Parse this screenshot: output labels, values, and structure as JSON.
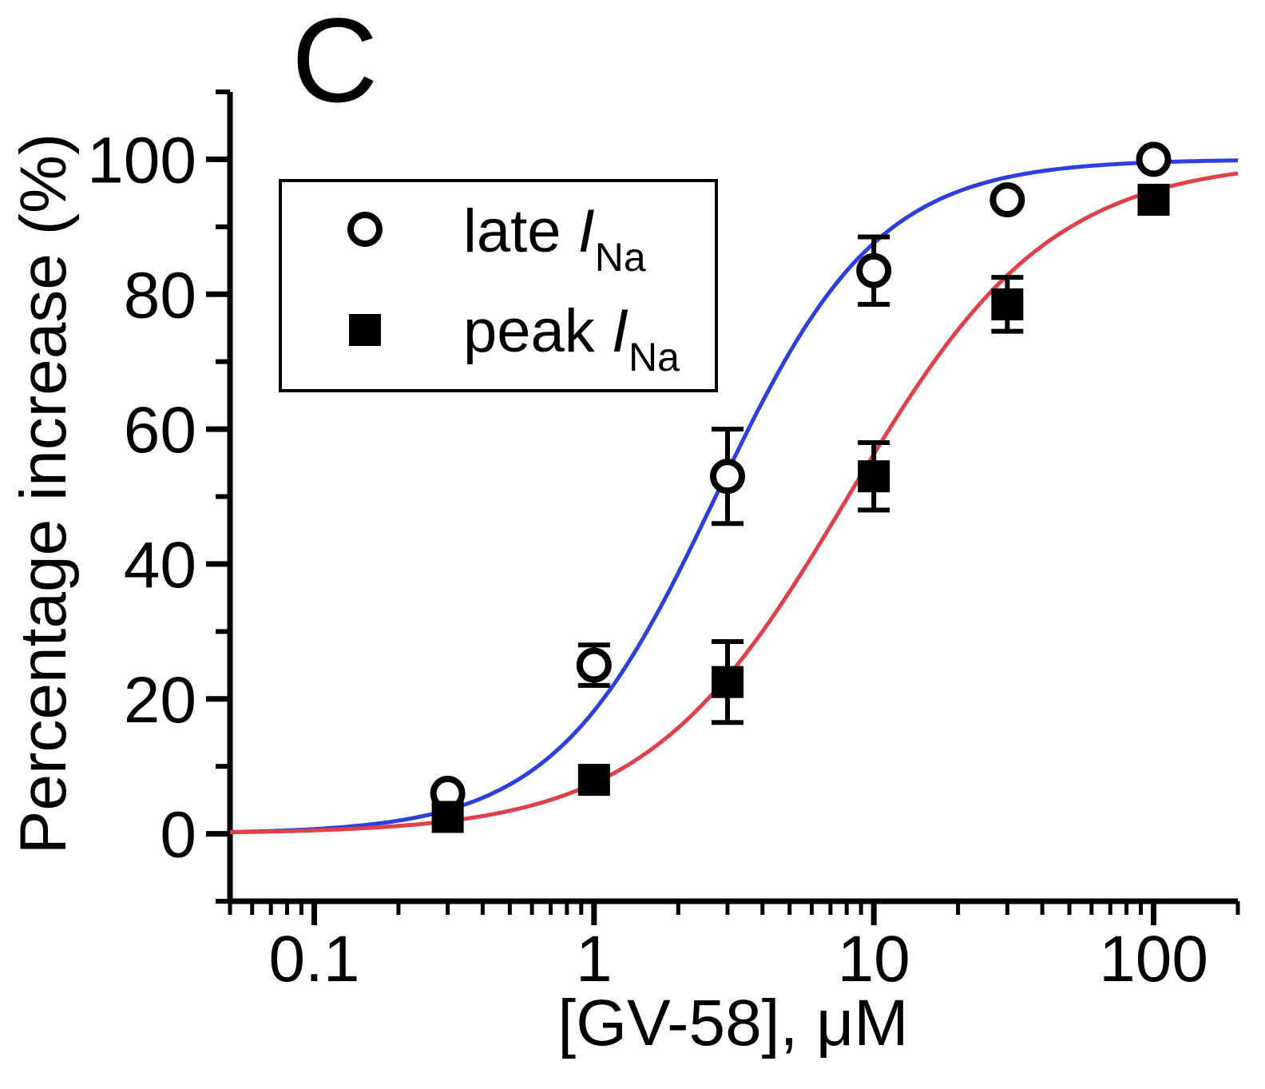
{
  "panel_label": "C",
  "chart_data": {
    "type": "scatter",
    "title": "",
    "xlabel": "[GV-58], μM",
    "ylabel": "Percentage increase (%)",
    "xscale": "log",
    "xlim": [
      0.05,
      200
    ],
    "ylim": [
      -10,
      110
    ],
    "x_ticks": [
      0.1,
      1,
      10,
      100
    ],
    "x_tick_labels": [
      "0.1",
      "1",
      "10",
      "100"
    ],
    "y_ticks": [
      0,
      20,
      40,
      60,
      80,
      100
    ],
    "y_tick_labels": [
      "0",
      "20",
      "40",
      "60",
      "80",
      "100"
    ],
    "legend_position": "top-left",
    "series": [
      {
        "name": "late I_Na",
        "legend_main": "late ",
        "legend_italic": "I",
        "legend_sub": "Na",
        "marker": "open-circle",
        "line_color": "#2c3fe0",
        "x": [
          0.3,
          1,
          3,
          10,
          30,
          100
        ],
        "y": [
          6,
          25,
          53,
          83.5,
          94,
          100
        ],
        "err": [
          1,
          3,
          7,
          5,
          1,
          0.5
        ],
        "fit": {
          "ec50": 2.72,
          "hill": 1.5,
          "top": 100
        }
      },
      {
        "name": "peak I_Na",
        "legend_main": "peak ",
        "legend_italic": "I",
        "legend_sub": "Na",
        "marker": "filled-square",
        "line_color": "#e0404a",
        "x": [
          0.3,
          1,
          3,
          10,
          30,
          100
        ],
        "y": [
          2.5,
          8,
          22.5,
          53,
          78.5,
          94
        ],
        "err": [
          1,
          1,
          6,
          5,
          4,
          1
        ],
        "fit": {
          "ec50": 8.1,
          "hill": 1.2,
          "top": 100
        }
      }
    ]
  }
}
